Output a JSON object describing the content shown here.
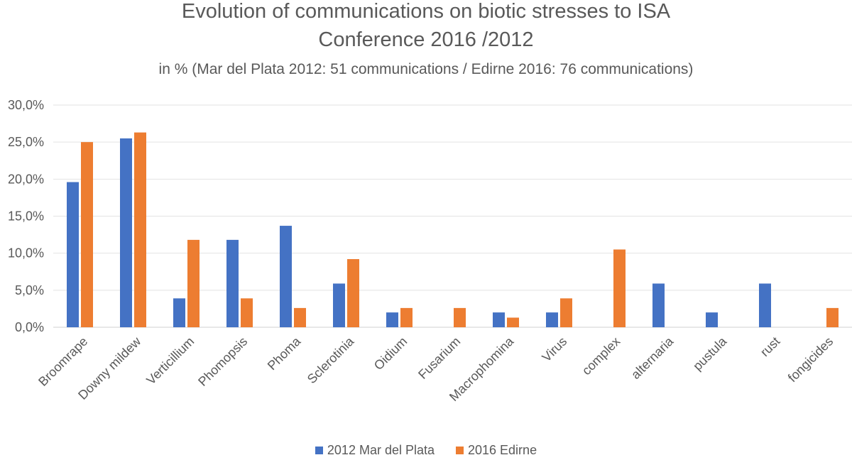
{
  "chart_data": {
    "type": "bar",
    "title_line1": "Evolution of communications on biotic stresses  to ISA",
    "title_line2": "Conference  2016 /2012",
    "subtitle": "in % (Mar del Plata 2012: 51 communications / Edirne 2016: 76 communications)",
    "categories": [
      "Broomrape",
      "Downy mildew",
      "Verticillium",
      "Phomopsis",
      "Phoma",
      "Sclerotinia",
      "Oidium",
      "Fusarium",
      "Macrophomina",
      "Virus",
      "complex",
      "alternaria",
      "pustula",
      "rust",
      "fongicides"
    ],
    "series": [
      {
        "name": "2012 Mar del Plata",
        "color": "#4472C4",
        "values": [
          19.6,
          25.5,
          3.9,
          11.8,
          13.7,
          5.9,
          2.0,
          0.0,
          2.0,
          2.0,
          0.0,
          5.9,
          2.0,
          5.9,
          0.0
        ]
      },
      {
        "name": "2016 Edirne",
        "color": "#ED7D31",
        "values": [
          25.0,
          26.3,
          11.8,
          3.9,
          2.6,
          9.2,
          2.6,
          2.6,
          1.3,
          3.9,
          10.5,
          0.0,
          0.0,
          0.0,
          2.6
        ]
      }
    ],
    "ylim": [
      0,
      30
    ],
    "yticks": [
      "0,0%",
      "5,0%",
      "10,0%",
      "15,0%",
      "20,0%",
      "25,0%",
      "30,0%"
    ],
    "grid": true,
    "legend_position": "bottom"
  }
}
